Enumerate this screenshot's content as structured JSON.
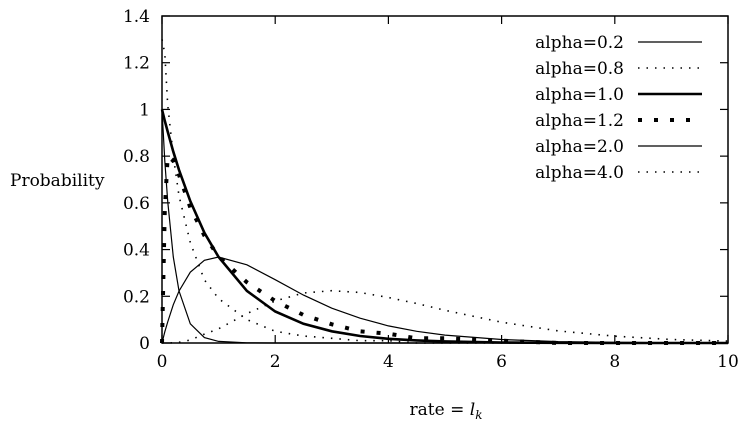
{
  "chart_data": {
    "type": "line",
    "title": "",
    "xlabel_prefix": "rate = ",
    "xlabel_var": "l",
    "xlabel_sub": "k",
    "ylabel": "Probability",
    "xlim": [
      0,
      10
    ],
    "ylim": [
      0,
      1.4
    ],
    "xticks": [
      "0",
      "2",
      "4",
      "6",
      "8",
      "10"
    ],
    "yticks": [
      "0",
      "0.2",
      "0.4",
      "0.6",
      "0.8",
      "1",
      "1.2",
      "1.4"
    ],
    "grid": false,
    "legend_position": "top-right",
    "x": [
      0,
      0.05,
      0.1,
      0.2,
      0.3,
      0.5,
      0.75,
      1.0,
      1.5,
      2.0,
      2.5,
      3.0,
      3.5,
      4.0,
      4.5,
      5.0,
      6.0,
      7.0,
      8.0,
      9.0,
      10.0
    ],
    "series": [
      {
        "name": "alpha=0.2",
        "style": "solid-thin",
        "values": [
          1.0,
          0.779,
          0.607,
          0.368,
          0.223,
          0.082,
          0.023,
          0.007,
          0.001,
          0.0,
          0.0,
          0.0,
          0.0,
          0.0,
          0.0,
          0.0,
          0.0,
          0.0,
          0.0,
          0.0,
          0.0
        ]
      },
      {
        "name": "alpha=0.8",
        "style": "dotted-fine",
        "values": [
          1.3,
          1.24,
          1.02,
          0.8,
          0.63,
          0.43,
          0.27,
          0.19,
          0.1,
          0.05,
          0.03,
          0.02,
          0.01,
          0.01,
          0.0,
          0.0,
          0.0,
          0.0,
          0.0,
          0.0,
          0.0
        ]
      },
      {
        "name": "alpha=1.0",
        "style": "solid-thick",
        "values": [
          1.0,
          0.951,
          0.905,
          0.819,
          0.741,
          0.607,
          0.472,
          0.368,
          0.223,
          0.135,
          0.082,
          0.05,
          0.03,
          0.018,
          0.011,
          0.007,
          0.002,
          0.001,
          0.0,
          0.0,
          0.0
        ]
      },
      {
        "name": "alpha=1.2",
        "style": "dotted-heavy",
        "values": [
          0.0,
          0.57,
          0.8,
          0.78,
          0.72,
          0.58,
          0.46,
          0.37,
          0.26,
          0.18,
          0.12,
          0.08,
          0.05,
          0.04,
          0.02,
          0.02,
          0.01,
          0.0,
          0.0,
          0.0,
          0.0
        ]
      },
      {
        "name": "alpha=2.0",
        "style": "solid-thin",
        "values": [
          0.0,
          0.048,
          0.09,
          0.164,
          0.222,
          0.303,
          0.354,
          0.368,
          0.335,
          0.271,
          0.205,
          0.149,
          0.106,
          0.073,
          0.05,
          0.034,
          0.015,
          0.006,
          0.003,
          0.001,
          0.0
        ]
      },
      {
        "name": "alpha=4.0",
        "style": "dotted-fine",
        "values": [
          0.0,
          0.0,
          0.0,
          0.001,
          0.003,
          0.013,
          0.038,
          0.061,
          0.126,
          0.18,
          0.214,
          0.224,
          0.216,
          0.195,
          0.169,
          0.14,
          0.089,
          0.052,
          0.029,
          0.015,
          0.008
        ]
      }
    ]
  }
}
